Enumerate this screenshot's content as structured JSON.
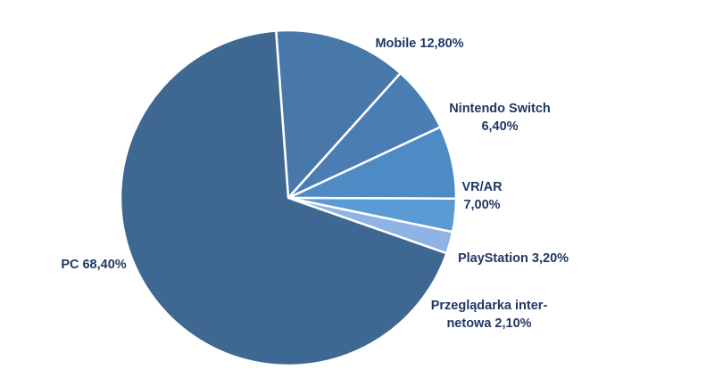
{
  "chart_data": {
    "type": "pie",
    "start_angle_deg": -4.2,
    "direction": "clockwise",
    "slices": [
      {
        "name": "Mobile",
        "value": 12.8,
        "label_lines": [
          "Mobile 12,80%"
        ],
        "color": "#4878aa"
      },
      {
        "name": "Nintendo Switch",
        "value": 6.4,
        "label_lines": [
          "Nintendo Switch",
          "6,40%"
        ],
        "color": "#4a7db4"
      },
      {
        "name": "VR/AR",
        "value": 7.0,
        "label_lines": [
          "VR/AR",
          "7,00%"
        ],
        "color": "#4e8ac4"
      },
      {
        "name": "PlayStation",
        "value": 3.2,
        "label_lines": [
          "PlayStation 3,20%"
        ],
        "color": "#5b9bd5"
      },
      {
        "name": "Przeglądarka internetowa",
        "value": 2.1,
        "label_lines": [
          "Przeglądarka inter-",
          "netowa 2,10%"
        ],
        "color": "#8fb4e3"
      },
      {
        "name": "PC",
        "value": 68.4,
        "label_lines": [
          "PC 68,40%"
        ],
        "color": "#3e6891"
      }
    ]
  }
}
